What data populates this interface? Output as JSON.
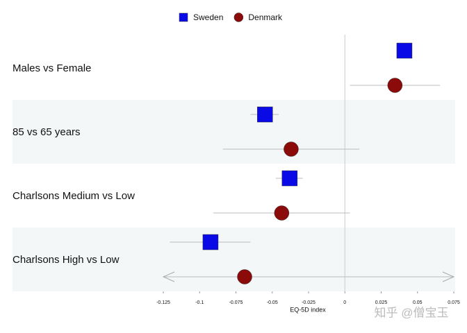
{
  "chart_data": {
    "type": "forest",
    "categories": [
      "Males vs Female",
      "85 vs 65 years",
      "Charlsons Medium vs Low",
      "Charlsons High vs Low"
    ],
    "series": [
      {
        "name": "Sweden",
        "color": "#0a0ae6",
        "marker": "square",
        "values": [
          0.041,
          -0.055,
          -0.038,
          -0.0925
        ],
        "lower": [
          0.038,
          -0.065,
          -0.0475,
          -0.1205
        ],
        "upper": [
          0.044,
          -0.0455,
          -0.029,
          -0.065
        ]
      },
      {
        "name": "Denmark",
        "color": "#8b0a0a",
        "marker": "circle",
        "values": [
          0.0345,
          -0.037,
          -0.0435,
          -0.069
        ],
        "lower": [
          0.0035,
          -0.084,
          -0.0905,
          -0.135
        ],
        "upper": [
          0.0655,
          0.01,
          0.0035,
          0.085
        ]
      }
    ],
    "xlabel": "EQ-5D index",
    "xlim": [
      -0.125,
      0.075
    ],
    "xticks": [
      -0.125,
      -0.1,
      -0.075,
      -0.05,
      -0.025,
      0,
      0.025,
      0.05,
      0.075
    ],
    "legend": "top",
    "watermark": "知乎 @僧宝玉"
  }
}
